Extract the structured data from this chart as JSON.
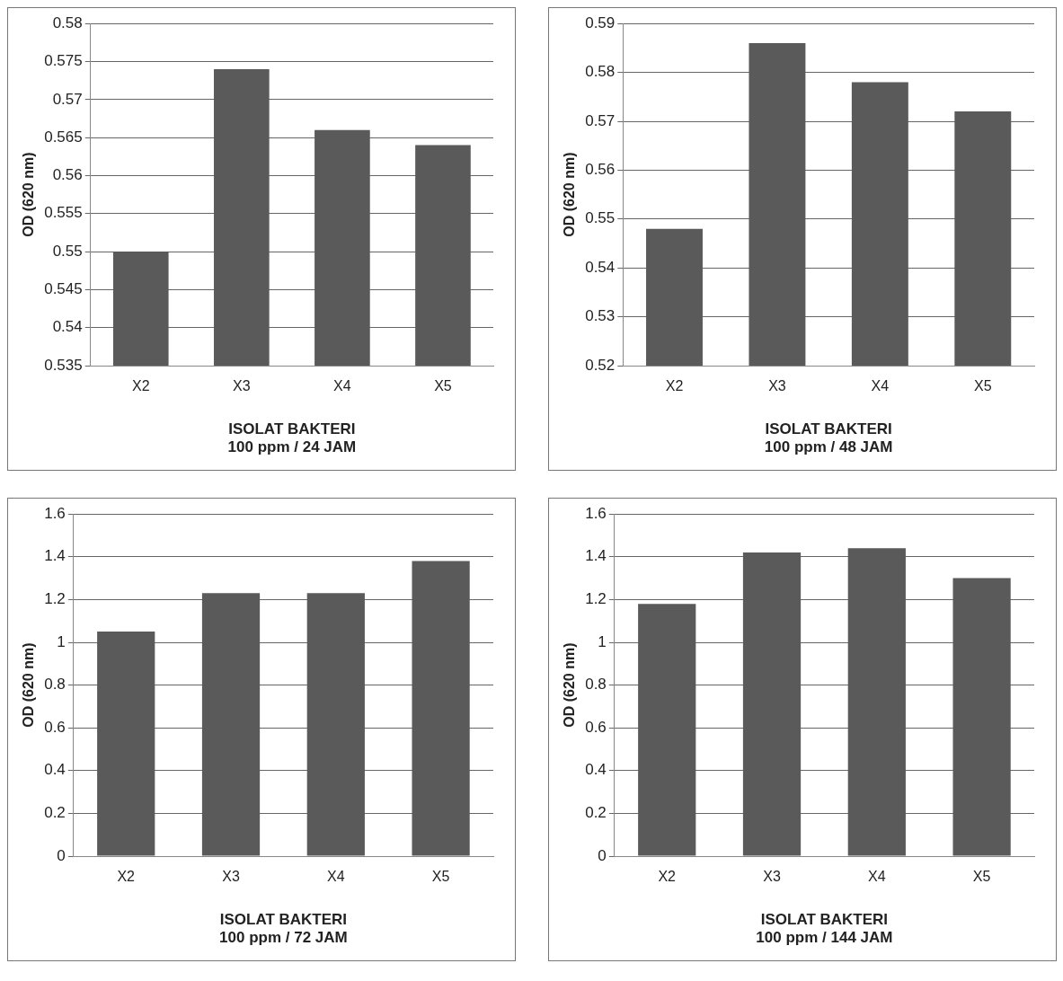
{
  "chart_data": [
    {
      "type": "bar",
      "categories": [
        "X2",
        "X3",
        "X4",
        "X5"
      ],
      "values": [
        0.55,
        0.574,
        0.566,
        0.564
      ],
      "color": "#5a5a5a",
      "ylabel": "OD (620 nm)",
      "xlabel": "ISOLAT BAKTERI\n100 ppm / 24 JAM",
      "ylim": [
        0.535,
        0.58
      ],
      "yticks": [
        0.535,
        0.54,
        0.545,
        0.55,
        0.555,
        0.56,
        0.565,
        0.57,
        0.575,
        0.58
      ],
      "grid": "y",
      "legend": false
    },
    {
      "type": "bar",
      "categories": [
        "X2",
        "X3",
        "X4",
        "X5"
      ],
      "values": [
        0.548,
        0.586,
        0.578,
        0.572
      ],
      "color": "#5a5a5a",
      "ylabel": "OD (620 nm)",
      "xlabel": "ISOLAT BAKTERI\n100 ppm / 48 JAM",
      "ylim": [
        0.52,
        0.59
      ],
      "yticks": [
        0.52,
        0.53,
        0.54,
        0.55,
        0.56,
        0.57,
        0.58,
        0.59
      ],
      "grid": "y",
      "legend": false
    },
    {
      "type": "bar",
      "categories": [
        "X2",
        "X3",
        "X4",
        "X5"
      ],
      "values": [
        1.05,
        1.23,
        1.23,
        1.38
      ],
      "color": "#5a5a5a",
      "ylabel": "OD (620 nm)",
      "xlabel": "ISOLAT BAKTERI\n100 ppm / 72 JAM",
      "ylim": [
        0,
        1.6
      ],
      "yticks": [
        0,
        0.2,
        0.4,
        0.6,
        0.8,
        1,
        1.2,
        1.4,
        1.6
      ],
      "grid": "y",
      "legend": false
    },
    {
      "type": "bar",
      "categories": [
        "X2",
        "X3",
        "X4",
        "X5"
      ],
      "values": [
        1.18,
        1.42,
        1.44,
        1.3
      ],
      "color": "#5a5a5a",
      "ylabel": "OD (620 nm)",
      "xlabel": "ISOLAT BAKTERI\n100 ppm / 144 JAM",
      "ylim": [
        0,
        1.6
      ],
      "yticks": [
        0,
        0.2,
        0.4,
        0.6,
        0.8,
        1,
        1.2,
        1.4,
        1.6
      ],
      "grid": "y",
      "legend": false
    }
  ]
}
